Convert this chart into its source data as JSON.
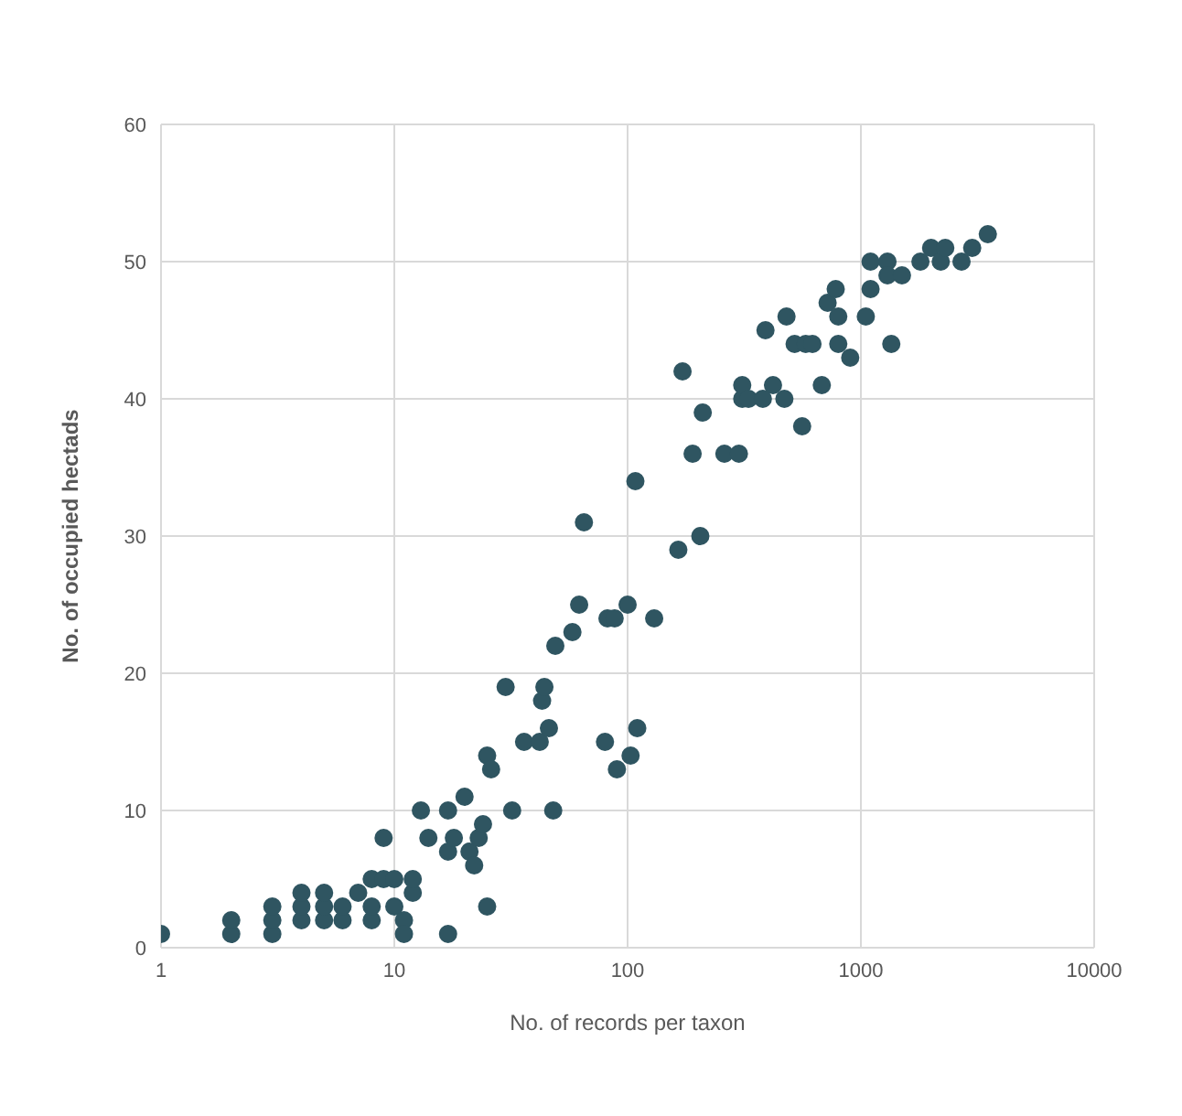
{
  "chart_data": {
    "type": "scatter",
    "xlabel": "No. of records per taxon",
    "ylabel": "No. of occupied hectads",
    "log": "x",
    "grid": true,
    "marker": "circle",
    "xlim": [
      1,
      10000
    ],
    "xticks": [
      1,
      10,
      100,
      1000,
      10000
    ],
    "ylim": [
      0,
      60
    ],
    "yticks": [
      0,
      10,
      20,
      30,
      40,
      50,
      60
    ],
    "series": [
      {
        "color": "#2f5561",
        "x": [
          1,
          2,
          2,
          3,
          3,
          3,
          4,
          4,
          4,
          5,
          5,
          5,
          6,
          6,
          7,
          8,
          8,
          8,
          9,
          9,
          10,
          10,
          11,
          11,
          12,
          12,
          13,
          14,
          17,
          17,
          17,
          18,
          20,
          21,
          22,
          23,
          24,
          25,
          25,
          26,
          30,
          32,
          36,
          42,
          43,
          44,
          46,
          48,
          49,
          58,
          62,
          65,
          80,
          82,
          88,
          90,
          100,
          103,
          108,
          110,
          130,
          165,
          172,
          190,
          205,
          210,
          260,
          300,
          310,
          310,
          330,
          380,
          390,
          420,
          480,
          470,
          520,
          560,
          580,
          620,
          680,
          720,
          780,
          800,
          800,
          900,
          1050,
          1100,
          1100,
          1300,
          1300,
          1350,
          1500,
          1800,
          2000,
          2200,
          2300,
          2700,
          3000,
          3500
        ],
        "values": [
          1,
          1,
          2,
          1,
          2,
          3,
          2,
          3,
          4,
          2,
          3,
          4,
          2,
          3,
          4,
          2,
          3,
          5,
          5,
          8,
          5,
          3,
          2,
          1,
          4,
          5,
          10,
          8,
          1,
          7,
          10,
          8,
          11,
          7,
          6,
          8,
          9,
          3,
          14,
          13,
          19,
          10,
          15,
          15,
          18,
          19,
          16,
          10,
          22,
          23,
          25,
          31,
          15,
          24,
          24,
          13,
          25,
          14,
          34,
          16,
          24,
          29,
          42,
          36,
          30,
          39,
          36,
          36,
          40,
          41,
          40,
          40,
          45,
          41,
          46,
          40,
          44,
          38,
          44,
          44,
          41,
          47,
          48,
          46,
          44,
          43,
          46,
          48,
          50,
          50,
          49,
          44,
          49,
          50,
          51,
          50,
          51,
          50,
          51,
          52
        ]
      }
    ]
  }
}
